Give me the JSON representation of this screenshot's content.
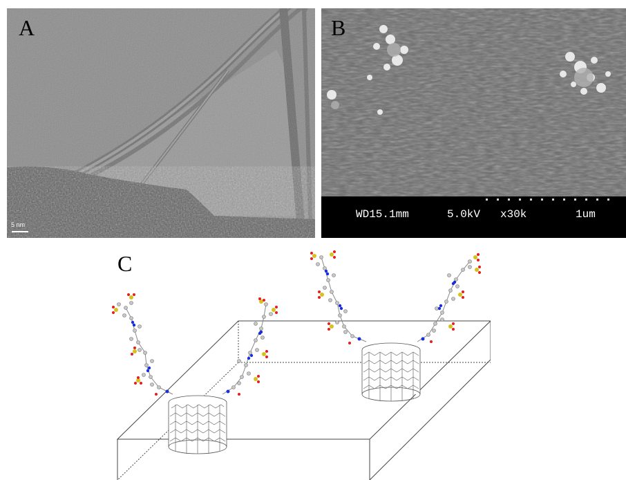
{
  "figure": {
    "panel_a": {
      "letter": "A",
      "scale_label": "5 nm"
    },
    "panel_b": {
      "letter": "B",
      "sem": {
        "working_distance": "WD15.1mm",
        "voltage": "5.0kV",
        "magnification": "x30k",
        "scale": "1um"
      }
    },
    "panel_c": {
      "letter": "C"
    }
  },
  "colors": {
    "nitrogen": "#1a2fd6",
    "oxygen": "#e02020",
    "sulfur": "#d6c21a",
    "carbon": "#a8a8a8"
  }
}
